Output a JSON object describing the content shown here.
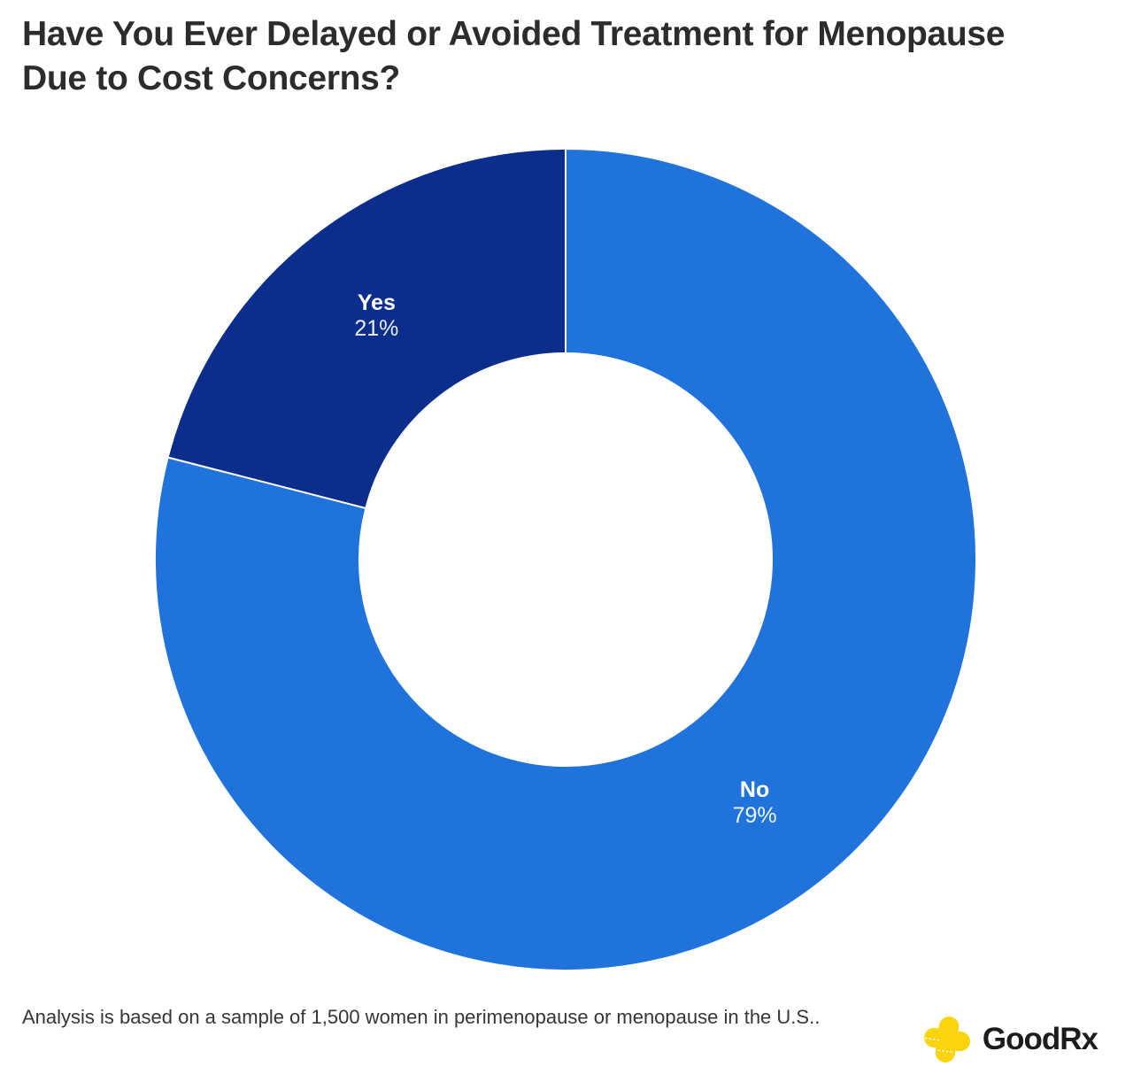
{
  "header": {
    "title": "Have You Ever Delayed or Avoided Treatment for Menopause Due to Cost Concerns?"
  },
  "chart_data": {
    "type": "pie",
    "subtype": "donut",
    "title": "Have You Ever Delayed or Avoided Treatment for Menopause Due to Cost Concerns?",
    "categories": [
      "Yes",
      "No"
    ],
    "values": [
      21,
      79
    ],
    "unit": "%",
    "slice_labels": [
      {
        "name": "Yes",
        "value": "21%"
      },
      {
        "name": "No",
        "value": "79%"
      }
    ],
    "colors": [
      "#0b2d8c",
      "#2173dc"
    ],
    "slice_border_color": "#ffffff",
    "start_angle_deg": 90,
    "direction": "counterclockwise",
    "inner_radius_ratio": 0.502,
    "label_position": "inside",
    "legend": "none"
  },
  "footer": {
    "note": "Analysis is based on a sample of 1,500 women in perimenopause or menopause in the U.S..",
    "logo": {
      "text": "GoodRx",
      "cross_color": "#fcd40b",
      "text_color": "#1c1c1c"
    }
  }
}
